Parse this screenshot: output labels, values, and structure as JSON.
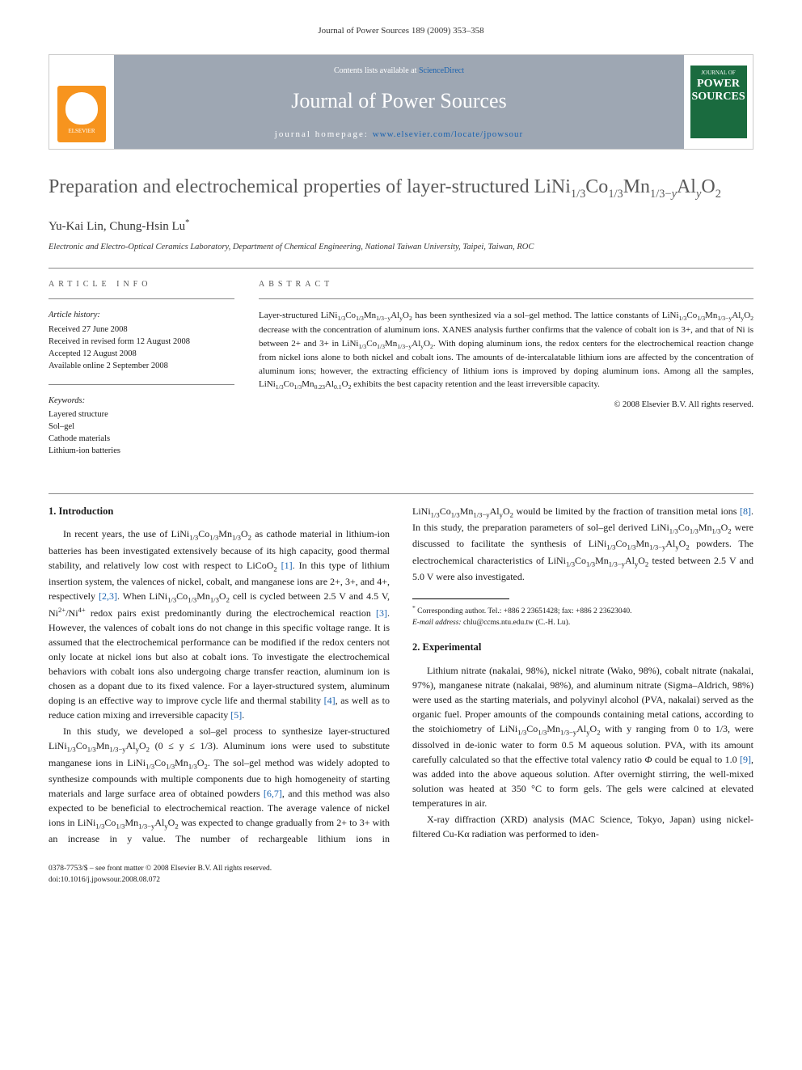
{
  "running_header": "Journal of Power Sources 189 (2009) 353–358",
  "banner": {
    "contents_prefix": "Contents lists available at ",
    "contents_link": "ScienceDirect",
    "journal_name": "Journal of Power Sources",
    "homepage_prefix": "journal homepage: ",
    "homepage_url": "www.elsevier.com/locate/jpowsour",
    "elsevier_label": "ELSEVIER",
    "cover_top": "JOURNAL OF",
    "cover_main1": "POWER",
    "cover_main2": "SOURCES"
  },
  "title_html": "Preparation and electrochemical properties of layer-structured LiNi<sub>1/3</sub>Co<sub>1/3</sub>Mn<sub>1/3−<i>y</i></sub>Al<sub><i>y</i></sub>O<sub>2</sub>",
  "authors_html": "Yu-Kai Lin, Chung-Hsin Lu<sup>*</sup>",
  "affiliation": "Electronic and Electro-Optical Ceramics Laboratory, Department of Chemical Engineering, National Taiwan University, Taipei, Taiwan, ROC",
  "article_info": {
    "heading": "ARTICLE INFO",
    "history_label": "Article history:",
    "history": [
      "Received 27 June 2008",
      "Received in revised form 12 August 2008",
      "Accepted 12 August 2008",
      "Available online 2 September 2008"
    ],
    "keywords_label": "Keywords:",
    "keywords": [
      "Layered structure",
      "Sol–gel",
      "Cathode materials",
      "Lithium-ion batteries"
    ]
  },
  "abstract": {
    "heading": "ABSTRACT",
    "text_html": "Layer-structured LiNi<sub>1/3</sub>Co<sub>1/3</sub>Mn<sub>1/3−y</sub>Al<sub>y</sub>O<sub>2</sub> has been synthesized via a sol–gel method. The lattice constants of LiNi<sub>1/3</sub>Co<sub>1/3</sub>Mn<sub>1/3−y</sub>Al<sub>y</sub>O<sub>2</sub> decrease with the concentration of aluminum ions. XANES analysis further confirms that the valence of cobalt ion is 3+, and that of Ni is between 2+ and 3+ in LiNi<sub>1/3</sub>Co<sub>1/3</sub>Mn<sub>1/3−y</sub>Al<sub>y</sub>O<sub>2</sub>. With doping aluminum ions, the redox centers for the electrochemical reaction change from nickel ions alone to both nickel and cobalt ions. The amounts of de-intercalatable lithium ions are affected by the concentration of aluminum ions; however, the extracting efficiency of lithium ions is improved by doping aluminum ions. Among all the samples, LiNi<sub>1/3</sub>Co<sub>1/3</sub>Mn<sub>0.23</sub>Al<sub>0.1</sub>O<sub>2</sub> exhibits the best capacity retention and the least irreversible capacity.",
    "copyright": "© 2008 Elsevier B.V. All rights reserved."
  },
  "sections": {
    "intro_heading": "1. Introduction",
    "intro_p1_html": "In recent years, the use of LiNi<sub>1/3</sub>Co<sub>1/3</sub>Mn<sub>1/3</sub>O<sub>2</sub> as cathode material in lithium-ion batteries has been investigated extensively because of its high capacity, good thermal stability, and relatively low cost with respect to LiCoO<sub>2</sub> <a class=\"ref-link\">[1]</a>. In this type of lithium insertion system, the valences of nickel, cobalt, and manganese ions are 2+, 3+, and 4+, respectively <a class=\"ref-link\">[2,3]</a>. When LiNi<sub>1/3</sub>Co<sub>1/3</sub>Mn<sub>1/3</sub>O<sub>2</sub> cell is cycled between 2.5 V and 4.5 V, Ni<sup>2+</sup>/Ni<sup>4+</sup> redox pairs exist predominantly during the electrochemical reaction <a class=\"ref-link\">[3]</a>. However, the valences of cobalt ions do not change in this specific voltage range. It is assumed that the electrochemical performance can be modified if the redox centers not only locate at nickel ions but also at cobalt ions. To investigate the electrochemical behaviors with cobalt ions also undergoing charge transfer reaction, aluminum ion is chosen as a dopant due to its fixed valence. For a layer-structured system, aluminum doping is an effective way to improve cycle life and thermal stability <a class=\"ref-link\">[4]</a>, as well as to reduce cation mixing and irreversible capacity <a class=\"ref-link\">[5]</a>.",
    "intro_p2_html": "In this study, we developed a sol–gel process to synthesize layer-structured LiNi<sub>1/3</sub>Co<sub>1/3</sub>Mn<sub>1/3−y</sub>Al<sub>y</sub>O<sub>2</sub> (0 ≤ y ≤ 1/3). Aluminum ions were used to substitute manganese ions in LiNi<sub>1/3</sub>Co<sub>1/3</sub>Mn<sub>1/3</sub>O<sub>2</sub>. The sol–gel method was widely adopted to synthesize compounds with multiple components due to high homogeneity of starting materials and large surface area of obtained powders <a class=\"ref-link\">[6,7]</a>, and this method was also expected to be beneficial to electrochemical reaction. The average valence of nickel ions in LiNi<sub>1/3</sub>Co<sub>1/3</sub>Mn<sub>1/3−y</sub>Al<sub>y</sub>O<sub>2</sub> was expected to change gradually from 2+ to 3+ with an increase in y value. The number of rechargeable lithium ions in LiNi<sub>1/3</sub>Co<sub>1/3</sub>Mn<sub>1/3−y</sub>Al<sub>y</sub>O<sub>2</sub> would be limited by the fraction of transition metal ions <a class=\"ref-link\">[8]</a>. In this study, the preparation parameters of sol–gel derived LiNi<sub>1/3</sub>Co<sub>1/3</sub>Mn<sub>1/3</sub>O<sub>2</sub> were discussed to facilitate the synthesis of LiNi<sub>1/3</sub>Co<sub>1/3</sub>Mn<sub>1/3−y</sub>Al<sub>y</sub>O<sub>2</sub> powders. The electrochemical characteristics of LiNi<sub>1/3</sub>Co<sub>1/3</sub>Mn<sub>1/3−y</sub>Al<sub>y</sub>O<sub>2</sub> tested between 2.5 V and 5.0 V were also investigated.",
    "exp_heading": "2. Experimental",
    "exp_p1_html": "Lithium nitrate (nakalai, 98%), nickel nitrate (Wako, 98%), cobalt nitrate (nakalai, 97%), manganese nitrate (nakalai, 98%), and aluminum nitrate (Sigma–Aldrich, 98%) were used as the starting materials, and polyvinyl alcohol (PVA, nakalai) served as the organic fuel. Proper amounts of the compounds containing metal cations, according to the stoichiometry of LiNi<sub>1/3</sub>Co<sub>1/3</sub>Mn<sub>1/3−y</sub>Al<sub>y</sub>O<sub>2</sub> with y ranging from 0 to 1/3, were dissolved in de-ionic water to form 0.5 M aqueous solution. PVA, with its amount carefully calculated so that the effective total valency ratio <i>Φ</i> could be equal to 1.0 <a class=\"ref-link\">[9]</a>, was added into the above aqueous solution. After overnight stirring, the well-mixed solution was heated at 350 °C to form gels. The gels were calcined at elevated temperatures in air.",
    "exp_p2_html": "X-ray diffraction (XRD) analysis (MAC Science, Tokyo, Japan) using nickel-filtered Cu-Kα radiation was performed to iden-"
  },
  "footnote": {
    "corr_html": "<sup>*</sup> Corresponding author. Tel.: +886 2 23651428; fax: +886 2 23623040.",
    "email_html": "<i>E-mail address:</i> chlu@ccms.ntu.edu.tw (C.-H. Lu)."
  },
  "footer": {
    "line1": "0378-7753/$ – see front matter © 2008 Elsevier B.V. All rights reserved.",
    "line2": "doi:10.1016/j.jpowsour.2008.08.072"
  },
  "colors": {
    "banner_bg": "#9ea7b3",
    "link": "#1b63b0",
    "elsevier": "#f7941e",
    "cover": "#1a6b3f",
    "title_color": "#5a5a5a"
  }
}
